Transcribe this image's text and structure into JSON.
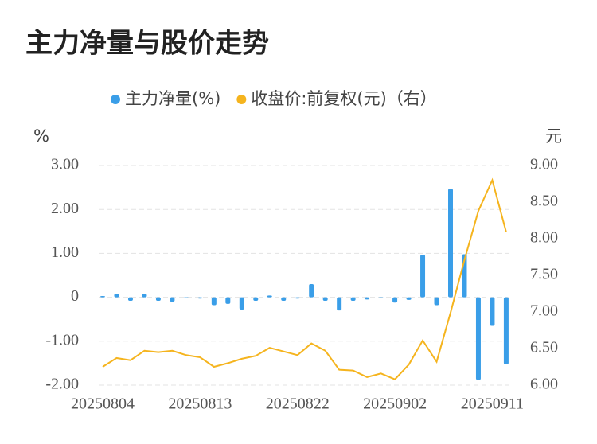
{
  "chart_data": {
    "type": "bar-line",
    "title": "主力净量与股价走势",
    "ylabel": "%",
    "y2label": "元",
    "categories": [
      "20250804",
      null,
      null,
      null,
      null,
      null,
      null,
      "20250813",
      null,
      null,
      null,
      null,
      null,
      null,
      "20250822",
      null,
      null,
      null,
      null,
      null,
      null,
      "20250902",
      null,
      null,
      null,
      null,
      null,
      null,
      "20250911",
      null
    ],
    "series": [
      {
        "name": "主力净量(%)",
        "color": "#3a9ee8",
        "type": "bar",
        "values": [
          0.03,
          0.08,
          -0.08,
          0.08,
          -0.08,
          -0.1,
          -0.02,
          -0.03,
          -0.18,
          -0.15,
          -0.28,
          -0.08,
          0.04,
          -0.08,
          -0.03,
          0.3,
          -0.08,
          -0.3,
          -0.08,
          -0.05,
          -0.02,
          -0.12,
          -0.06,
          0.97,
          -0.18,
          2.47,
          0.98,
          -1.88,
          -0.65,
          -1.53
        ]
      },
      {
        "name": "收盘价:前复权(元)（右）",
        "color": "#f5b41e",
        "type": "line",
        "axis": "y2",
        "values": [
          6.25,
          6.37,
          6.34,
          6.47,
          6.45,
          6.47,
          6.41,
          6.38,
          6.25,
          6.3,
          6.36,
          6.4,
          6.51,
          6.46,
          6.41,
          6.57,
          6.47,
          6.21,
          6.2,
          6.11,
          6.16,
          6.08,
          6.28,
          6.61,
          6.32,
          6.99,
          7.71,
          8.38,
          8.8,
          8.09
        ]
      }
    ],
    "ylim": [
      -2,
      3
    ],
    "yticks": [
      {
        "value": -2,
        "label": "-2.00"
      },
      {
        "value": -1,
        "label": "-1.00"
      },
      0,
      {
        "value": 1,
        "label": "1.00"
      },
      {
        "value": 2,
        "label": "2.00"
      },
      {
        "value": 3,
        "label": "3.00"
      }
    ],
    "y2lim": [
      6,
      9
    ],
    "y2ticks": [
      {
        "value": 6,
        "label": "6.00"
      },
      {
        "value": 6.5,
        "label": "6.50"
      },
      {
        "value": 7,
        "label": "7.00"
      },
      {
        "value": 7.5,
        "label": "7.50"
      },
      {
        "value": 8,
        "label": "8.00"
      },
      {
        "value": 8.5,
        "label": "8.50"
      },
      {
        "value": 9,
        "label": "9.00"
      }
    ],
    "grid": true
  }
}
